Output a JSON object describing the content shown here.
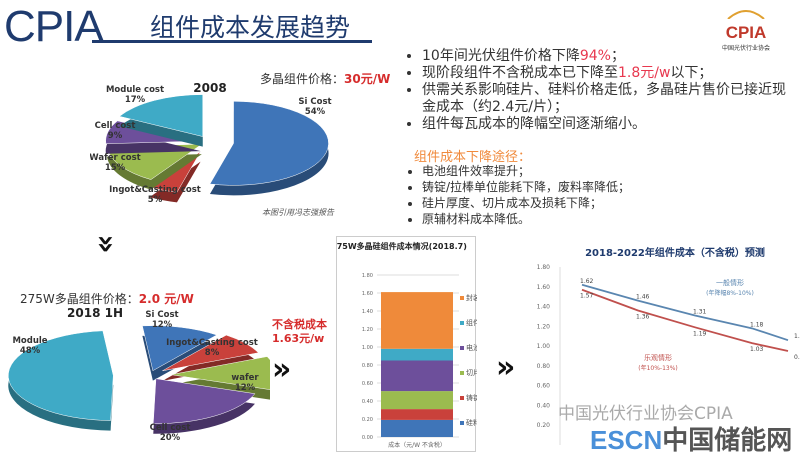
{
  "header": {
    "brand": "CPIA",
    "title": "组件成本发展趋势",
    "logo_text": "CPIA",
    "logo_sub": "中国光伏行业协会"
  },
  "colors": {
    "brand": "#1f3b6e",
    "highlight": "#e8384f",
    "orange": "#f08a3c"
  },
  "bullets": [
    {
      "pre": "10年间光伏组件价格下降",
      "hl": "94%",
      "post": "；"
    },
    {
      "pre": "现阶段组件不含税成本已下降至",
      "hl": "1.8元/w",
      "post": "以下；"
    },
    {
      "pre": "供需关系影响硅片、硅料价格走低，多晶硅片售价已接近现金成本（约2.4元/片）；",
      "hl": "",
      "post": ""
    },
    {
      "pre": "组件每瓦成本的降幅空间逐渐缩小。",
      "hl": "",
      "post": ""
    }
  ],
  "sub_heading": "组件成本下降途径：",
  "sub_bullets": [
    "电池组件效率提升；",
    "铸锭/拉棒单位能耗下降，废料率降低；",
    "硅片厚度、切片成本及损耗下降；",
    "原辅材料成本降低。"
  ],
  "pie2008": {
    "price_label": "多晶组件价格：",
    "price_value": "30元/W",
    "source_note": "本图引用冯志强报告"
  },
  "pie2018": {
    "price_label": "275W多晶组件价格：",
    "price_value": "2.0 元/W",
    "tax_free_label": "不含税成本",
    "tax_free_value": "1.63元/w"
  },
  "watermark": {
    "line1": "中国光伏行业协会CPIA",
    "escn": "ESCN",
    "escn_cn": "中国储能网"
  },
  "chart_data": [
    {
      "type": "pie",
      "title": "2008",
      "slices": [
        {
          "label": "Si Cost",
          "value": 54,
          "text": "54%",
          "color": "#3f75b8"
        },
        {
          "label": "Ingot&Casting cost",
          "value": 5,
          "text": "5%",
          "color": "#c9413b"
        },
        {
          "label": "Wafer cost",
          "value": 15,
          "text": "15%",
          "color": "#9bbb4f"
        },
        {
          "label": "Cell cost",
          "value": 9,
          "text": "9%",
          "color": "#6d4f9b"
        },
        {
          "label": "Module cost",
          "value": 17,
          "text": "17%",
          "color": "#3faac6"
        }
      ]
    },
    {
      "type": "pie",
      "title": "2018 1H",
      "slices": [
        {
          "label": "Si Cost",
          "value": 12,
          "text": "12%",
          "color": "#3f75b8"
        },
        {
          "label": "Ingot&Casting cost",
          "value": 8,
          "text": "8%",
          "color": "#c9413b"
        },
        {
          "label": "wafer",
          "value": 12,
          "text": "12%",
          "color": "#9bbb4f"
        },
        {
          "label": "Cell cost",
          "value": 20,
          "text": "20%",
          "color": "#6d4f9b"
        },
        {
          "label": "Module",
          "value": 48,
          "text": "48%",
          "color": "#3faac6"
        }
      ]
    },
    {
      "type": "bar",
      "stacked": true,
      "title": "275W多晶硅组件成本情况(2018.7)",
      "xlabel": "成本（元/W 不含税）",
      "ylim": [
        0,
        1.8
      ],
      "yticks": [
        "0.00",
        "0.20",
        "0.40",
        "0.60",
        "0.80",
        "1.00",
        "1.20",
        "1.40",
        "1.60",
        "1.80"
      ],
      "series": [
        {
          "name": "硅料",
          "value": 0.19,
          "color": "#3f75b8"
        },
        {
          "name": "铸锭",
          "value": 0.12,
          "color": "#c9413b"
        },
        {
          "name": "切片",
          "value": 0.2,
          "color": "#9bbb4f"
        },
        {
          "name": "电池制造",
          "value": 0.34,
          "color": "#6d4f9b"
        },
        {
          "name": "组件封装",
          "value": 0.13,
          "color": "#3faac6"
        },
        {
          "name": "封装辅材",
          "value": 0.63,
          "color": "#ef8a3a"
        }
      ],
      "legend": "right",
      "grid": true
    },
    {
      "type": "line",
      "title": "2018-2022年组件成本（不含税）预测",
      "ylim": [
        0,
        1.8
      ],
      "yticks": [
        "0.20",
        "0.40",
        "0.60",
        "0.80",
        "1.00",
        "1.20",
        "1.40",
        "1.60",
        "1.80"
      ],
      "series": [
        {
          "name": "一般情形",
          "note": "(年降幅8%-10%)",
          "values": [
            1.62,
            1.46,
            1.31,
            1.18,
            1.06
          ],
          "color": "#5a86b0"
        },
        {
          "name": "乐观情形",
          "note": "(年10%-13%)",
          "values": [
            1.57,
            1.36,
            1.19,
            1.03,
            0.95
          ],
          "color": "#c0504d"
        }
      ],
      "grid": false
    }
  ]
}
